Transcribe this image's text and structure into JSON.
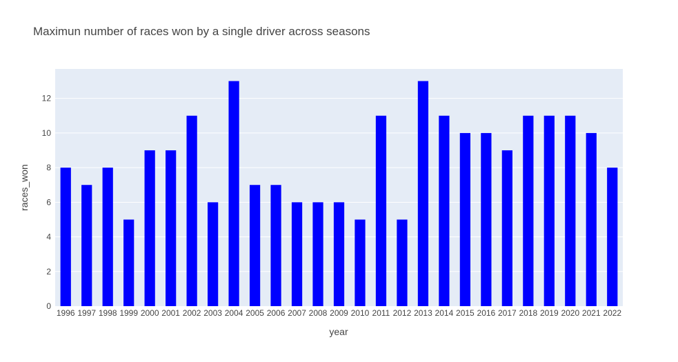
{
  "chart_data": {
    "type": "bar",
    "title": "Maximun number of races won by a single driver across seasons",
    "xlabel": "year",
    "ylabel": "races_won",
    "categories": [
      "1996",
      "1997",
      "1998",
      "1999",
      "2000",
      "2001",
      "2002",
      "2003",
      "2004",
      "2005",
      "2006",
      "2007",
      "2008",
      "2009",
      "2010",
      "2011",
      "2012",
      "2013",
      "2014",
      "2015",
      "2016",
      "2017",
      "2018",
      "2019",
      "2020",
      "2021",
      "2022"
    ],
    "values": [
      8,
      7,
      8,
      5,
      9,
      9,
      11,
      6,
      13,
      7,
      7,
      6,
      6,
      6,
      5,
      11,
      5,
      13,
      11,
      10,
      10,
      9,
      11,
      11,
      11,
      10,
      8
    ],
    "ylim": [
      0,
      13.7
    ],
    "yticks": [
      0,
      2,
      4,
      6,
      8,
      10,
      12
    ],
    "ytick_labels": [
      "0",
      "2",
      "4",
      "6",
      "8",
      "10",
      "12"
    ],
    "grid": true,
    "colors": {
      "bar": "#0000ff",
      "plot_background": "#e5ecf6",
      "grid": "#ffffff",
      "text": "#444444"
    }
  }
}
